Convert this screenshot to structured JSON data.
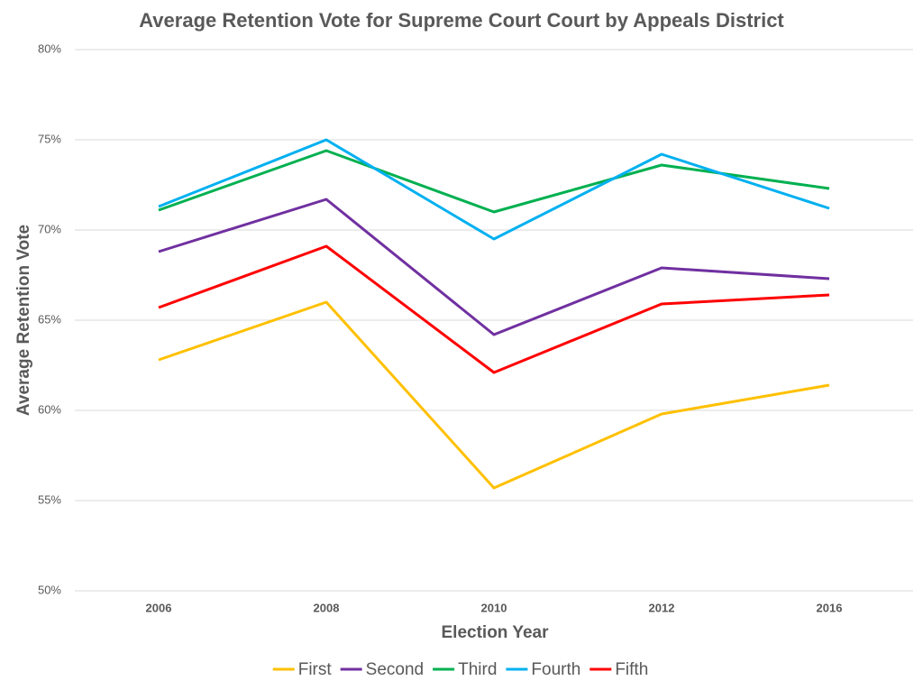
{
  "chart_data": {
    "type": "line",
    "title": "Average Retention Vote for Supreme Court Court by Appeals District",
    "x_label": "Election Year",
    "y_label": "Average Retention Vote",
    "categories": [
      "2006",
      "2008",
      "2010",
      "2012",
      "2016"
    ],
    "series": [
      {
        "name": "First",
        "color": "#ffc000",
        "values": [
          62.8,
          66.0,
          55.7,
          59.8,
          61.4
        ]
      },
      {
        "name": "Second",
        "color": "#7030a0",
        "values": [
          68.8,
          71.7,
          64.2,
          67.9,
          67.3
        ]
      },
      {
        "name": "Third",
        "color": "#00b050",
        "values": [
          71.1,
          74.4,
          71.0,
          73.6,
          72.3
        ]
      },
      {
        "name": "Fourth",
        "color": "#00b0f0",
        "values": [
          71.3,
          75.0,
          69.5,
          74.2,
          71.2
        ]
      },
      {
        "name": "Fifth",
        "color": "#ff0000",
        "values": [
          65.7,
          69.1,
          62.1,
          65.9,
          66.4
        ]
      }
    ],
    "ylim": [
      50,
      80
    ],
    "yticks": [
      {
        "value": 50,
        "label": "50%"
      },
      {
        "value": 55,
        "label": "55%"
      },
      {
        "value": 60,
        "label": "60%"
      },
      {
        "value": 65,
        "label": "65%"
      },
      {
        "value": 70,
        "label": "70%"
      },
      {
        "value": 75,
        "label": "75%"
      },
      {
        "value": 80,
        "label": "80%"
      }
    ],
    "grid": true,
    "legend": "bottom"
  }
}
